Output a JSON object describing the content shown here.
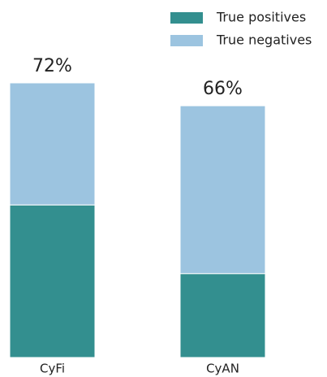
{
  "chart_data": {
    "type": "stacked_bar",
    "categories": [
      "CyFi",
      "CyAN"
    ],
    "series": [
      {
        "name": "True positives",
        "color": "#338f8f",
        "values": [
          40,
          22
        ]
      },
      {
        "name": "True negatives",
        "color": "#9cc4e0",
        "values": [
          32,
          44
        ]
      }
    ],
    "total_labels": [
      "72%",
      "66%"
    ]
  }
}
